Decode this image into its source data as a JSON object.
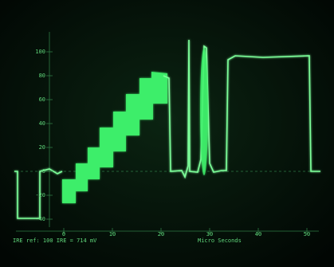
{
  "scale_labels": [
    "100",
    "80",
    "60",
    "40",
    "20",
    "0",
    "-20",
    "-40"
  ],
  "time_labels": [
    "0",
    "10",
    "20",
    "30",
    "40",
    "50"
  ],
  "footer": {
    "reference": "IRE ref: 100 IRE = 714 mV",
    "units": "Micro Seconds"
  }
}
